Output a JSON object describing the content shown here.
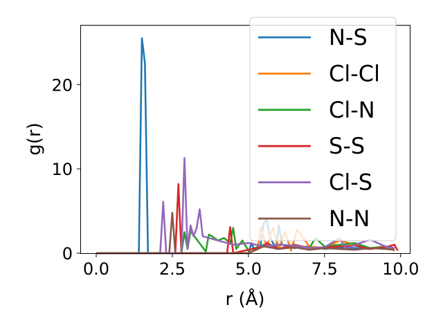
{
  "chart_data": {
    "type": "line",
    "xlabel": "r (Å)",
    "ylabel": "g(r)",
    "xlim": [
      -0.5,
      10.3
    ],
    "ylim": [
      0,
      27
    ],
    "xticks": [
      {
        "value": 0.0,
        "label": "0.0"
      },
      {
        "value": 2.5,
        "label": "2.5"
      },
      {
        "value": 5.0,
        "label": "5.0"
      },
      {
        "value": 7.5,
        "label": "7.5"
      },
      {
        "value": 10.0,
        "label": "10.0"
      }
    ],
    "yticks": [
      {
        "value": 0,
        "label": "0"
      },
      {
        "value": 10,
        "label": "10"
      },
      {
        "value": 20,
        "label": "20"
      }
    ],
    "grid": false,
    "legend_position": "top-right",
    "series": [
      {
        "name": "N-S",
        "color": "#1f77b4",
        "x": [
          0.0,
          1.4,
          1.5,
          1.6,
          1.7,
          5.0,
          5.1,
          5.2,
          5.4,
          5.5,
          5.6,
          5.7,
          5.9,
          6.0,
          6.1,
          6.5,
          7.0,
          7.5,
          8.0,
          8.5,
          9.0,
          9.5,
          9.8
        ],
        "values": [
          0.0,
          0.0,
          25.5,
          22.5,
          0.0,
          0.0,
          1.2,
          0.3,
          1.0,
          3.5,
          4.0,
          2.0,
          0.5,
          3.3,
          1.0,
          0.6,
          0.8,
          0.5,
          0.7,
          0.6,
          0.5,
          0.8,
          0.3
        ]
      },
      {
        "name": "Cl-Cl",
        "color": "#ff7f0e",
        "x": [
          0.0,
          5.0,
          5.3,
          5.4,
          5.6,
          5.8,
          6.0,
          6.2,
          6.4,
          6.6,
          7.0,
          7.5,
          8.0,
          8.5,
          9.0,
          9.5,
          9.8
        ],
        "values": [
          0.0,
          0.0,
          0.5,
          3.0,
          0.8,
          3.0,
          0.5,
          2.5,
          0.3,
          2.8,
          0.8,
          0.6,
          1.5,
          1.0,
          0.5,
          0.8,
          0.3
        ]
      },
      {
        "name": "Cl-N",
        "color": "#2ca02c",
        "x": [
          0.0,
          2.8,
          2.9,
          3.0,
          3.1,
          3.6,
          3.7,
          3.8,
          4.0,
          4.2,
          4.4,
          4.5,
          4.6,
          4.8,
          5.0,
          5.5,
          6.0,
          6.5,
          7.0,
          7.2,
          7.5,
          8.0,
          8.5,
          9.0,
          9.5,
          9.8
        ],
        "values": [
          0.0,
          0.0,
          2.5,
          0.5,
          2.6,
          0.2,
          2.2,
          2.0,
          1.5,
          1.8,
          1.2,
          3.0,
          0.5,
          1.5,
          0.3,
          1.0,
          0.5,
          1.0,
          0.6,
          1.8,
          0.8,
          1.0,
          1.2,
          0.6,
          0.8,
          0.5
        ]
      },
      {
        "name": "S-S",
        "color": "#d62728",
        "x": [
          0.0,
          2.6,
          2.7,
          2.8,
          3.0,
          4.3,
          4.4,
          4.5,
          5.5,
          5.6,
          6.0,
          6.5,
          7.0,
          8.0,
          8.5,
          9.0,
          9.5,
          9.8,
          9.9
        ],
        "values": [
          0.0,
          0.0,
          8.2,
          0.0,
          0.0,
          0.0,
          3.1,
          0.0,
          0.8,
          1.2,
          0.5,
          1.0,
          0.6,
          0.8,
          0.9,
          0.5,
          0.7,
          1.0,
          0.3
        ]
      },
      {
        "name": "Cl-S",
        "color": "#9467bd",
        "x": [
          0.0,
          2.1,
          2.2,
          2.3,
          2.8,
          2.9,
          3.0,
          3.1,
          3.2,
          3.3,
          3.4,
          3.5,
          4.0,
          4.5,
          5.0,
          5.5,
          6.0,
          6.5,
          7.0,
          7.5,
          8.0,
          8.2,
          8.5,
          9.0,
          9.5,
          9.8
        ],
        "values": [
          0.0,
          0.0,
          6.1,
          0.0,
          0.0,
          11.3,
          0.5,
          3.3,
          2.0,
          3.0,
          5.2,
          2.0,
          1.5,
          1.0,
          1.2,
          0.8,
          1.0,
          0.9,
          0.6,
          0.7,
          1.8,
          0.5,
          1.0,
          1.6,
          0.8,
          0.6
        ]
      },
      {
        "name": "N-N",
        "color": "#8c564b",
        "x": [
          0.0,
          2.4,
          2.5,
          2.6,
          5.0,
          5.5,
          6.0,
          6.5,
          7.0,
          7.5,
          8.0,
          8.5,
          9.0,
          9.5,
          9.8
        ],
        "values": [
          0.0,
          0.0,
          4.8,
          0.0,
          0.0,
          0.8,
          0.5,
          0.7,
          0.4,
          0.6,
          0.5,
          0.4,
          0.6,
          0.5,
          0.4
        ]
      }
    ]
  }
}
